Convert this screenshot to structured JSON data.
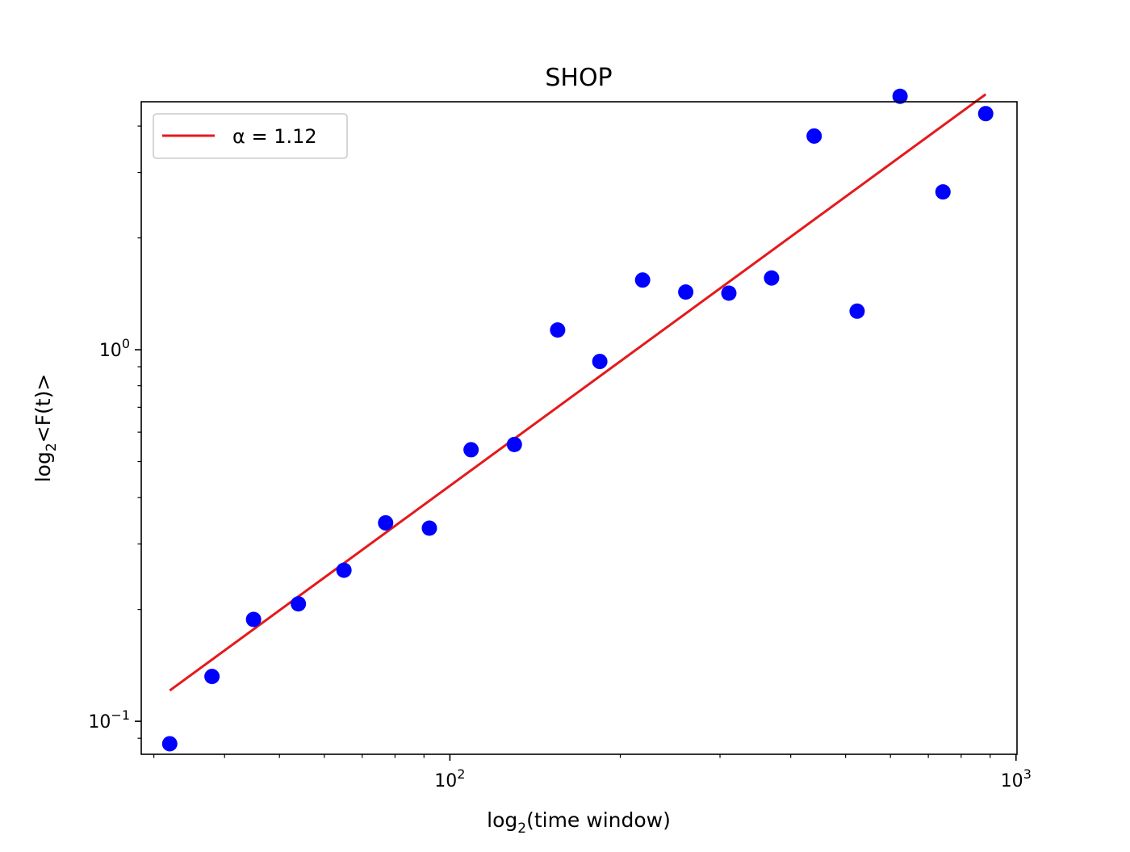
{
  "chart_data": {
    "type": "scatter",
    "title": "SHOP",
    "xlabel": {
      "prefix": "log",
      "sub": "2",
      "suffix": "(time window)"
    },
    "ylabel": {
      "prefix": "log",
      "sub": "2",
      "suffix": "<F(t)>"
    },
    "xscale": "log",
    "yscale": "log",
    "xlim": [
      28.5,
      1004
    ],
    "ylim": [
      0.0815,
      4.65
    ],
    "xticks": [
      {
        "value": 100,
        "base": "10",
        "exp": "2"
      },
      {
        "value": 1000,
        "base": "10",
        "exp": "3"
      }
    ],
    "yticks": [
      {
        "value": 0.1,
        "base": "10",
        "exp": "−1"
      },
      {
        "value": 1,
        "base": "10",
        "exp": "0"
      }
    ],
    "grid": false,
    "series": [
      {
        "type": "scatter",
        "color": "#0000ff",
        "x": [
          32,
          38,
          45,
          54,
          65,
          77,
          92,
          109,
          130,
          155,
          184,
          219,
          261,
          311,
          370,
          440,
          524,
          624,
          743,
          884
        ],
        "y": [
          0.087,
          0.132,
          0.188,
          0.207,
          0.255,
          0.342,
          0.331,
          0.538,
          0.556,
          1.13,
          0.93,
          1.54,
          1.43,
          1.42,
          1.56,
          3.76,
          1.27,
          4.81,
          2.66,
          4.32
        ]
      },
      {
        "type": "line",
        "name": "α = 1.12",
        "color": "#e41a1c",
        "x": [
          32,
          884
        ],
        "y": [
          0.121,
          4.87
        ]
      }
    ],
    "legend": {
      "position": "top-left",
      "entries": [
        "α = 1.12"
      ]
    }
  }
}
